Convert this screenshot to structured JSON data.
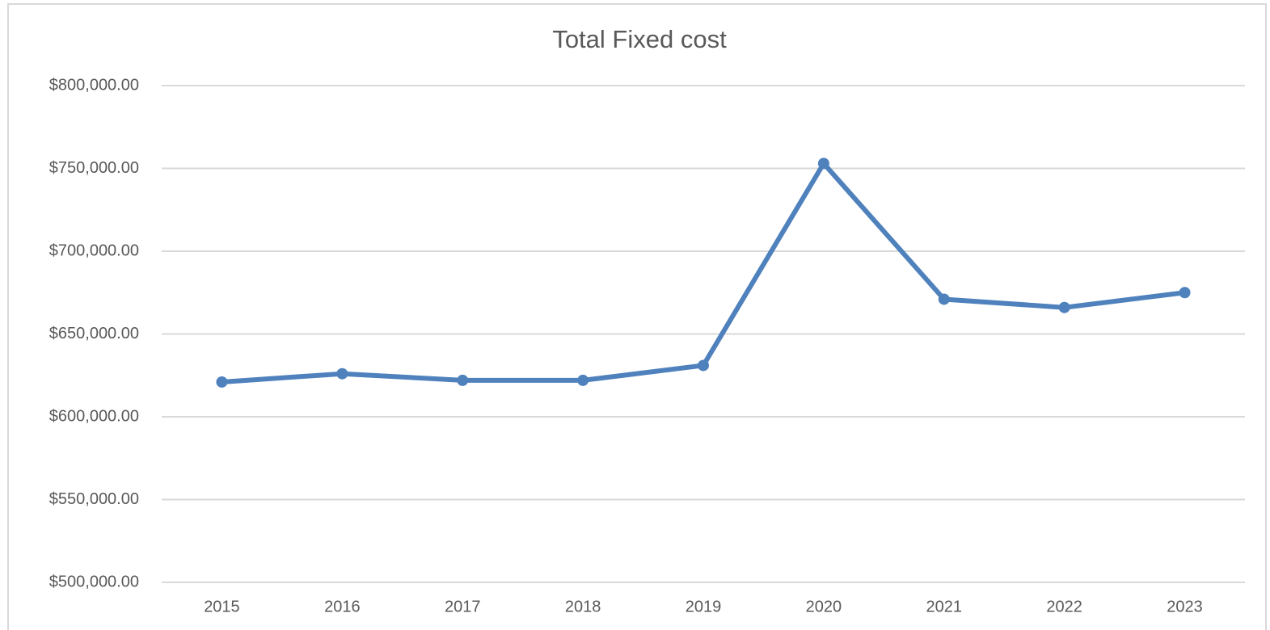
{
  "chart_data": {
    "type": "line",
    "title": "Total Fixed cost",
    "categories": [
      "2015",
      "2016",
      "2017",
      "2018",
      "2019",
      "2020",
      "2021",
      "2022",
      "2023"
    ],
    "values": [
      621000,
      626000,
      622000,
      622000,
      631000,
      753000,
      671000,
      666000,
      675000
    ],
    "color": "#4f81bd",
    "ylim": [
      500000,
      800000
    ],
    "yticks": [
      {
        "value": 500000,
        "label": "$500,000.00"
      },
      {
        "value": 550000,
        "label": "$550,000.00"
      },
      {
        "value": 600000,
        "label": "$600,000.00"
      },
      {
        "value": 650000,
        "label": "$650,000.00"
      },
      {
        "value": 700000,
        "label": "$700,000.00"
      },
      {
        "value": 750000,
        "label": "$750,000.00"
      },
      {
        "value": 800000,
        "label": "$800,000.00"
      }
    ],
    "grid": true
  }
}
